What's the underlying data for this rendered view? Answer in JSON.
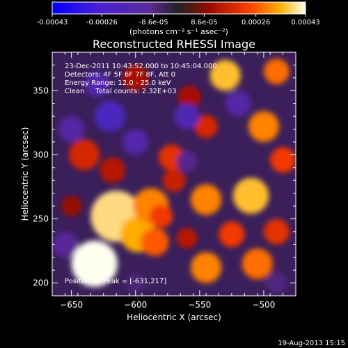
{
  "chart_data": {
    "type": "heatmap",
    "title": "Reconstructed RHESSI Image",
    "xlabel": "Heliocentric X (arcsec)",
    "ylabel": "Heliocentric Y (arcsec)",
    "xlim": [
      -665,
      -475
    ],
    "ylim": [
      190,
      380
    ],
    "x_ticks": [
      -650,
      -600,
      -550,
      -500
    ],
    "y_ticks": [
      200,
      250,
      300,
      350
    ],
    "colorbar": {
      "unit_label": "(photons cm⁻² s⁻¹ asec⁻²)",
      "tick_labels": [
        "-0.00043",
        "-0.00026",
        "-8.6e-05",
        "8.6e-05",
        "0.00026",
        "0.00043"
      ],
      "range": [
        -0.00043,
        0.00043
      ]
    },
    "annotations": [
      "23-Dec-2011 10:43:52.000 to 10:45:04.000",
      "Detectors: 4F 5F 6F 7F 8F, Att 0",
      "Energy Range: 12.0 - 25.0 keV",
      "Clean     Total counts: 2.32E+03"
    ],
    "peak_label": "Position of Peak = [-631,217]",
    "peak": {
      "x": -631,
      "y": 217
    },
    "blobs": [
      {
        "x": -632,
        "y": 215,
        "r": 18,
        "v": 0.00043
      },
      {
        "x": -615,
        "y": 252,
        "r": 20,
        "v": 0.00039
      },
      {
        "x": -598,
        "y": 238,
        "r": 14,
        "v": 0.00034
      },
      {
        "x": -588,
        "y": 260,
        "r": 14,
        "v": 0.0003
      },
      {
        "x": -640,
        "y": 300,
        "r": 12,
        "v": 0.00018
      },
      {
        "x": -618,
        "y": 288,
        "r": 10,
        "v": 0.00014
      },
      {
        "x": -585,
        "y": 232,
        "r": 11,
        "v": 0.00026
      },
      {
        "x": -572,
        "y": 298,
        "r": 10,
        "v": 0.0002
      },
      {
        "x": -580,
        "y": 252,
        "r": 9,
        "v": 0.00022
      },
      {
        "x": -545,
        "y": 265,
        "r": 12,
        "v": 0.0003
      },
      {
        "x": -510,
        "y": 268,
        "r": 14,
        "v": 0.00036
      },
      {
        "x": -525,
        "y": 238,
        "r": 10,
        "v": 0.00022
      },
      {
        "x": -545,
        "y": 212,
        "r": 12,
        "v": 0.0003
      },
      {
        "x": -505,
        "y": 215,
        "r": 12,
        "v": 0.00028
      },
      {
        "x": -490,
        "y": 240,
        "r": 10,
        "v": 0.0002
      },
      {
        "x": -530,
        "y": 362,
        "r": 12,
        "v": 0.00036
      },
      {
        "x": -490,
        "y": 365,
        "r": 10,
        "v": 0.00028
      },
      {
        "x": -545,
        "y": 322,
        "r": 9,
        "v": 0.00018
      },
      {
        "x": -500,
        "y": 322,
        "r": 12,
        "v": 0.0003
      },
      {
        "x": -485,
        "y": 296,
        "r": 10,
        "v": 0.00022
      },
      {
        "x": -558,
        "y": 345,
        "r": 9,
        "v": 0.00012
      },
      {
        "x": -600,
        "y": 360,
        "r": 10,
        "v": 0.00012
      },
      {
        "x": -570,
        "y": 280,
        "r": 9,
        "v": 0.00016
      },
      {
        "x": -650,
        "y": 260,
        "r": 8,
        "v": 0.0001
      },
      {
        "x": -560,
        "y": 235,
        "r": 8,
        "v": 0.00014
      },
      {
        "x": -650,
        "y": 320,
        "r": 10,
        "v": -0.00022
      },
      {
        "x": -620,
        "y": 330,
        "r": 12,
        "v": -0.0003
      },
      {
        "x": -600,
        "y": 310,
        "r": 10,
        "v": -0.00024
      },
      {
        "x": -560,
        "y": 330,
        "r": 10,
        "v": -0.00026
      },
      {
        "x": -520,
        "y": 340,
        "r": 10,
        "v": -0.00022
      },
      {
        "x": -630,
        "y": 355,
        "r": 10,
        "v": -0.00024
      },
      {
        "x": -655,
        "y": 230,
        "r": 10,
        "v": -0.00018
      },
      {
        "x": -560,
        "y": 295,
        "r": 8,
        "v": -0.00016
      },
      {
        "x": -490,
        "y": 200,
        "r": 8,
        "v": -0.00014
      },
      {
        "x": -600,
        "y": 200,
        "r": 8,
        "v": -0.00012
      }
    ]
  },
  "footer": {
    "date": "19-Aug-2013 15:15"
  }
}
